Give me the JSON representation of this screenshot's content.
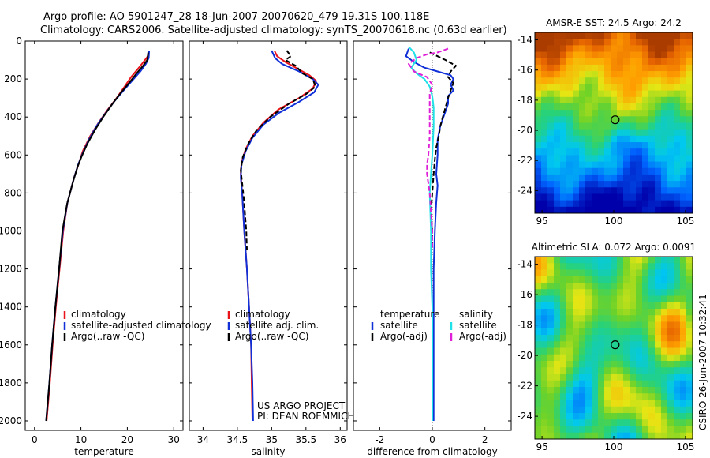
{
  "title": {
    "line1": "Argo profile: AO 5901247_28 18-Jun-2007 20070620_479 19.31S 100.118E",
    "line2": "Climatology: CARS2006. Satellite-adjusted climatology: synTS_20070618.nc (0.63d earlier)"
  },
  "footer": {
    "project": "US ARGO PROJECT",
    "pi": "PI: DEAN ROEMMICH",
    "stamp": "CSIRO 26-Jun-2007 10:32:41"
  },
  "colors": {
    "red": "#e8141a",
    "blue": "#1030d8",
    "black": "#000000",
    "cyan": "#20e0e8",
    "magenta": "#e020d8"
  },
  "chart_data": [
    {
      "type": "line",
      "id": "temperature",
      "xlabel": "temperature",
      "xlim": [
        -2,
        32
      ],
      "ylim": [
        0,
        2050
      ],
      "y_reversed": true,
      "xticks": [
        0,
        10,
        20,
        30
      ],
      "yticks": [
        0,
        200,
        400,
        600,
        800,
        1000,
        1200,
        1400,
        1600,
        1800,
        2000
      ],
      "legend": [
        {
          "label": "climatology",
          "color": "#e8141a"
        },
        {
          "label": "satellite-adjusted climatology",
          "color": "#1030d8"
        },
        {
          "label": "Argo(..raw -QC)",
          "color": "#000000"
        }
      ],
      "series": [
        {
          "name": "climatology",
          "color": "#e8141a",
          "dashed": false,
          "points": [
            [
              24.6,
              50
            ],
            [
              24.4,
              80
            ],
            [
              23.8,
              100
            ],
            [
              22.5,
              140
            ],
            [
              20.8,
              190
            ],
            [
              19.4,
              240
            ],
            [
              17.7,
              300
            ],
            [
              15.8,
              360
            ],
            [
              13.8,
              430
            ],
            [
              12,
              500
            ],
            [
              10.4,
              580
            ],
            [
              9.6,
              640
            ],
            [
              8.5,
              720
            ],
            [
              7.1,
              850
            ],
            [
              6.2,
              1000
            ],
            [
              5.4,
              1200
            ],
            [
              4.6,
              1400
            ],
            [
              3.9,
              1600
            ],
            [
              3.3,
              1800
            ],
            [
              2.6,
              2000
            ]
          ]
        },
        {
          "name": "satellite-adjusted climatology",
          "color": "#1030d8",
          "dashed": false,
          "points": [
            [
              24.7,
              50
            ],
            [
              24.6,
              90
            ],
            [
              24,
              120
            ],
            [
              22.8,
              160
            ],
            [
              21,
              210
            ],
            [
              19.2,
              260
            ],
            [
              17.1,
              320
            ],
            [
              15,
              390
            ],
            [
              13.3,
              450
            ],
            [
              11.7,
              520
            ],
            [
              10.4,
              590
            ],
            [
              9.4,
              650
            ],
            [
              8.4,
              730
            ],
            [
              7.1,
              850
            ],
            [
              6.1,
              1000
            ],
            [
              5.3,
              1200
            ],
            [
              4.5,
              1400
            ],
            [
              3.8,
              1600
            ],
            [
              3.2,
              1800
            ],
            [
              2.5,
              2000
            ]
          ]
        },
        {
          "name": "Argo(..raw -QC)",
          "color": "#000000",
          "dashed": false,
          "points": [
            [
              24.5,
              60
            ],
            [
              24.3,
              100
            ],
            [
              23.4,
              130
            ],
            [
              22,
              170
            ],
            [
              20.4,
              220
            ],
            [
              18.7,
              270
            ],
            [
              16.8,
              330
            ],
            [
              14.8,
              400
            ],
            [
              13,
              470
            ],
            [
              11.4,
              540
            ],
            [
              10.1,
              610
            ],
            [
              9.3,
              660
            ],
            [
              8.3,
              740
            ],
            [
              7,
              860
            ],
            [
              6,
              1000
            ],
            [
              5.3,
              1200
            ],
            [
              4.5,
              1400
            ],
            [
              3.8,
              1600
            ],
            [
              3.2,
              1800
            ],
            [
              2.5,
              2000
            ]
          ]
        }
      ]
    },
    {
      "type": "line",
      "id": "salinity",
      "xlabel": "salinity",
      "xlim": [
        33.8,
        36.1
      ],
      "ylim": [
        0,
        2050
      ],
      "y_reversed": true,
      "xticks": [
        34,
        34.5,
        35,
        35.5,
        36
      ],
      "xticklabels": [
        "34",
        "34.5",
        "35",
        "35.5",
        "36"
      ],
      "legend": [
        {
          "label": "climatology",
          "color": "#e8141a"
        },
        {
          "label": "satellite adj. clim.",
          "color": "#1030d8"
        },
        {
          "label": "Argo(..raw -QC)",
          "color": "#000000"
        }
      ],
      "series": [
        {
          "name": "climatology",
          "color": "#e8141a",
          "dashed": false,
          "points": [
            [
              35.04,
              50
            ],
            [
              35.08,
              80
            ],
            [
              35.2,
              110
            ],
            [
              35.4,
              150
            ],
            [
              35.55,
              180
            ],
            [
              35.65,
              210
            ],
            [
              35.6,
              250
            ],
            [
              35.4,
              300
            ],
            [
              35.1,
              360
            ],
            [
              34.88,
              430
            ],
            [
              34.72,
              500
            ],
            [
              34.62,
              570
            ],
            [
              34.56,
              640
            ],
            [
              34.55,
              700
            ],
            [
              34.57,
              800
            ],
            [
              34.6,
              1000
            ],
            [
              34.64,
              1200
            ],
            [
              34.67,
              1400
            ],
            [
              34.7,
              1600
            ],
            [
              34.71,
              1800
            ],
            [
              34.72,
              2000
            ]
          ]
        },
        {
          "name": "satellite adj. clim.",
          "color": "#1030d8",
          "dashed": false,
          "points": [
            [
              35.0,
              50
            ],
            [
              35.05,
              90
            ],
            [
              35.15,
              120
            ],
            [
              35.4,
              160
            ],
            [
              35.6,
              200
            ],
            [
              35.68,
              230
            ],
            [
              35.62,
              270
            ],
            [
              35.4,
              320
            ],
            [
              35.1,
              380
            ],
            [
              34.88,
              440
            ],
            [
              34.72,
              510
            ],
            [
              34.62,
              580
            ],
            [
              34.56,
              650
            ],
            [
              34.55,
              720
            ],
            [
              34.57,
              800
            ],
            [
              34.6,
              1000
            ],
            [
              34.64,
              1200
            ],
            [
              34.67,
              1400
            ],
            [
              34.7,
              1600
            ],
            [
              34.72,
              1800
            ],
            [
              34.73,
              2000
            ]
          ]
        },
        {
          "name": "Argo(..raw -QC)",
          "color": "#000000",
          "dashed": true,
          "points": [
            [
              35.22,
              50
            ],
            [
              35.28,
              80
            ],
            [
              35.2,
              100
            ],
            [
              35.35,
              130
            ],
            [
              35.45,
              170
            ],
            [
              35.6,
              200
            ],
            [
              35.64,
              240
            ],
            [
              35.5,
              280
            ],
            [
              35.25,
              330
            ],
            [
              34.98,
              400
            ],
            [
              34.78,
              470
            ],
            [
              34.66,
              540
            ],
            [
              34.58,
              610
            ],
            [
              34.55,
              680
            ],
            [
              34.58,
              780
            ],
            [
              34.6,
              850
            ],
            [
              34.61,
              900
            ],
            [
              34.63,
              1000
            ],
            [
              34.64,
              1100
            ]
          ]
        }
      ]
    },
    {
      "type": "line",
      "id": "difference",
      "xlabel": "difference from climatology",
      "xlim": [
        -3,
        3
      ],
      "ylim": [
        0,
        2050
      ],
      "y_reversed": true,
      "xticks": [
        -2,
        0,
        2
      ],
      "legend": [
        {
          "label": "temperature",
          "color": null
        },
        {
          "label": "satellite",
          "color": "#1030d8"
        },
        {
          "label": "Argo(-adj)",
          "color": "#000000"
        },
        {
          "label": "salinity",
          "color": null
        },
        {
          "label": "satellite",
          "color": "#20e0e8"
        },
        {
          "label": "Argo(-adj)",
          "color": "#e020d8"
        }
      ],
      "series": [
        {
          "name": "temperature satellite",
          "color": "#1030d8",
          "dashed": false,
          "points": [
            [
              -0.9,
              40
            ],
            [
              -1.0,
              80
            ],
            [
              -0.7,
              110
            ],
            [
              -0.3,
              140
            ],
            [
              0.2,
              160
            ],
            [
              0.7,
              180
            ],
            [
              0.8,
              200
            ],
            [
              0.7,
              230
            ],
            [
              0.8,
              260
            ],
            [
              0.6,
              290
            ],
            [
              0.6,
              330
            ],
            [
              0.5,
              370
            ],
            [
              0.4,
              410
            ],
            [
              0.3,
              450
            ],
            [
              0.2,
              520
            ],
            [
              0.2,
              600
            ],
            [
              0.15,
              700
            ],
            [
              0.2,
              760
            ],
            [
              0.15,
              850
            ],
            [
              0.1,
              1000
            ],
            [
              0.05,
              1200
            ],
            [
              0.05,
              1400
            ],
            [
              0.05,
              1600
            ],
            [
              0.05,
              1800
            ],
            [
              0.05,
              2000
            ]
          ]
        },
        {
          "name": "temperature Argo(-adj)",
          "color": "#000000",
          "dashed": true,
          "points": [
            [
              -0.1,
              60
            ],
            [
              0.2,
              80
            ],
            [
              0.5,
              100
            ],
            [
              0.9,
              130
            ],
            [
              0.7,
              160
            ],
            [
              0.6,
              190
            ],
            [
              0.8,
              220
            ],
            [
              0.7,
              260
            ],
            [
              0.6,
              300
            ],
            [
              0.5,
              350
            ],
            [
              0.4,
              400
            ],
            [
              0.3,
              450
            ],
            [
              0.25,
              500
            ],
            [
              0.15,
              560
            ],
            [
              0.1,
              620
            ],
            [
              0.05,
              700
            ],
            [
              0.0,
              800
            ],
            [
              -0.05,
              900
            ],
            [
              0.0,
              1000
            ],
            [
              0.0,
              1100
            ]
          ]
        },
        {
          "name": "salinity satellite",
          "color": "#20e0e8",
          "dashed": false,
          "points": [
            [
              -0.9,
              30
            ],
            [
              -0.7,
              60
            ],
            [
              -0.6,
              100
            ],
            [
              -0.8,
              140
            ],
            [
              -0.6,
              170
            ],
            [
              -0.3,
              200
            ],
            [
              -0.1,
              240
            ],
            [
              0.0,
              290
            ],
            [
              0.05,
              350
            ],
            [
              0.05,
              450
            ],
            [
              0.0,
              600
            ],
            [
              -0.05,
              700
            ],
            [
              -0.1,
              800
            ],
            [
              -0.05,
              1000
            ],
            [
              -0.05,
              1200
            ],
            [
              0.0,
              1400
            ],
            [
              0.0,
              1600
            ],
            [
              0.0,
              1800
            ],
            [
              0.0,
              2000
            ]
          ]
        },
        {
          "name": "salinity Argo(-adj)",
          "color": "#e020d8",
          "dashed": true,
          "points": [
            [
              0.6,
              40
            ],
            [
              0.2,
              60
            ],
            [
              -0.2,
              70
            ],
            [
              -0.6,
              90
            ],
            [
              -0.9,
              120
            ],
            [
              -0.7,
              160
            ],
            [
              -0.2,
              190
            ],
            [
              0.0,
              230
            ],
            [
              -0.1,
              280
            ],
            [
              -0.1,
              350
            ],
            [
              -0.1,
              500
            ],
            [
              -0.15,
              600
            ],
            [
              -0.2,
              650
            ],
            [
              -0.2,
              700
            ],
            [
              -0.1,
              800
            ],
            [
              -0.05,
              900
            ],
            [
              0.0,
              1000
            ],
            [
              0.0,
              1100
            ]
          ]
        }
      ]
    },
    {
      "type": "heatmap",
      "id": "sst",
      "title": "AMSR-E SST: 24.5 Argo: 24.2",
      "xlim": [
        94.5,
        105.5
      ],
      "ylim": [
        -25.5,
        -13.5
      ],
      "xticks": [
        95,
        100,
        105
      ],
      "yticks": [
        -14,
        -16,
        -18,
        -20,
        -22,
        -24
      ],
      "marker": {
        "lon": 100.1,
        "lat": -19.3
      }
    },
    {
      "type": "heatmap",
      "id": "sla",
      "title": "Altimetric SLA: 0.072 Argo: 0.0091",
      "xlim": [
        94.5,
        105.5
      ],
      "ylim": [
        -25.5,
        -13.5
      ],
      "xticks": [
        95,
        100,
        105
      ],
      "yticks": [
        -14,
        -16,
        -18,
        -20,
        -22,
        -24
      ],
      "marker": {
        "lon": 100.1,
        "lat": -19.3
      }
    }
  ]
}
